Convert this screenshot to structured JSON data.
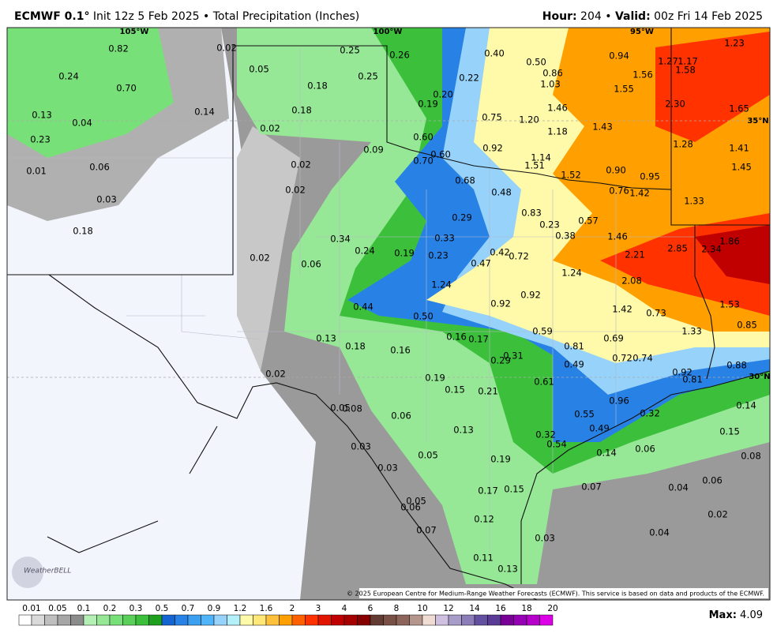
{
  "header": {
    "model": "ECMWF 0.1°",
    "description": "Init 12z 5 Feb 2025 • Total Precipitation (Inches)",
    "hour_label": "Hour:",
    "hour": "204 •",
    "valid_label": "Valid:",
    "valid": "00z Fri 14 Feb 2025"
  },
  "graticule": [
    "105°W",
    "100°W",
    "95°W",
    "35°N",
    "30°N"
  ],
  "map_labels": [
    "0.82",
    "0.24",
    "0.70",
    "0.13",
    "0.04",
    "0.23",
    "0.01",
    "0.06",
    "0.03",
    "0.18",
    "0.02",
    "0.05",
    "0.14",
    "0.02",
    "0.18",
    "0.18",
    "0.25",
    "0.25",
    "0.26",
    "0.40",
    "0.50",
    "0.22",
    "0.86",
    "1.03",
    "0.94",
    "1.27",
    "1.17",
    "1.58",
    "1.23",
    "1.56",
    "1.55",
    "2.30",
    "1.65",
    "0.20",
    "0.19",
    "0.75",
    "1.46",
    "1.20",
    "1.43",
    "1.18",
    "1.28",
    "1.41",
    "0.60",
    "0.92",
    "0.09",
    "0.02",
    "0.02",
    "0.70",
    "0.60",
    "1.14",
    "1.51",
    "1.52",
    "0.90",
    "0.95",
    "1.45",
    "0.68",
    "0.48",
    "0.76",
    "1.42",
    "1.33",
    "0.83",
    "0.29",
    "0.23",
    "0.57",
    "0.38",
    "1.46",
    "0.34",
    "0.33",
    "0.24",
    "0.19",
    "0.23",
    "0.42",
    "0.72",
    "2.21",
    "2.85",
    "2.34",
    "1.86",
    "0.02",
    "0.06",
    "0.47",
    "1.24",
    "1.24",
    "2.08",
    "0.92",
    "0.92",
    "0.44",
    "1.42",
    "0.73",
    "1.53",
    "0.50",
    "0.85",
    "1.33",
    "0.13",
    "0.18",
    "0.16",
    "0.16",
    "0.17",
    "0.59",
    "0.81",
    "0.69",
    "0.29",
    "0.31",
    "0.49",
    "0.72",
    "0.74",
    "0.92",
    "0.81",
    "0.88",
    "0.02",
    "0.19",
    "0.15",
    "0.21",
    "0.61",
    "0.96",
    "0.05",
    "0.08",
    "0.06",
    "0.55",
    "0.32",
    "0.14",
    "0.13",
    "0.49",
    "0.32",
    "0.15",
    "0.03",
    "0.54",
    "0.14",
    "0.06",
    "0.05",
    "0.19",
    "0.08",
    "0.03",
    "0.17",
    "0.15",
    "0.07",
    "0.06",
    "0.04",
    "0.05",
    "0.06",
    "0.12",
    "0.02",
    "0.07",
    "0.03",
    "0.04",
    "0.11",
    "0.13"
  ],
  "colorbar": {
    "labels": [
      0.01,
      0.05,
      0.1,
      0.2,
      0.3,
      0.5,
      0.7,
      0.9,
      1.2,
      1.6,
      2,
      3,
      4,
      6,
      8,
      10,
      12,
      14,
      16,
      18,
      20
    ],
    "colors": [
      "#ffffff",
      "#d9d9d9",
      "#bfbfbf",
      "#a6a6a6",
      "#8c8c8c",
      "#b4f0b4",
      "#96e896",
      "#78e078",
      "#5ad05a",
      "#3cc03c",
      "#1ea01e",
      "#1464d2",
      "#2882e6",
      "#3ca0f0",
      "#50b4fa",
      "#96d2fa",
      "#b4f0fa",
      "#fffaaa",
      "#ffe878",
      "#ffc03c",
      "#ffa000",
      "#ff6000",
      "#ff3200",
      "#e11400",
      "#c00000",
      "#a50000",
      "#870000",
      "#643b32",
      "#785046",
      "#8c645a",
      "#b4968c",
      "#f0dcd2",
      "#cfc0e0",
      "#a89cc8",
      "#8c7cb8",
      "#6450a0",
      "#5a3c96",
      "#780096",
      "#9600b4",
      "#b400c8",
      "#dc00e6"
    ]
  },
  "max_label": "Max:",
  "max_value": "4.09",
  "copyright": "© 2025 European Centre for Medium-Range Weather Forecasts (ECMWF). This service is based on data and products of the ECMWF.",
  "logo": "WeatherBELL"
}
